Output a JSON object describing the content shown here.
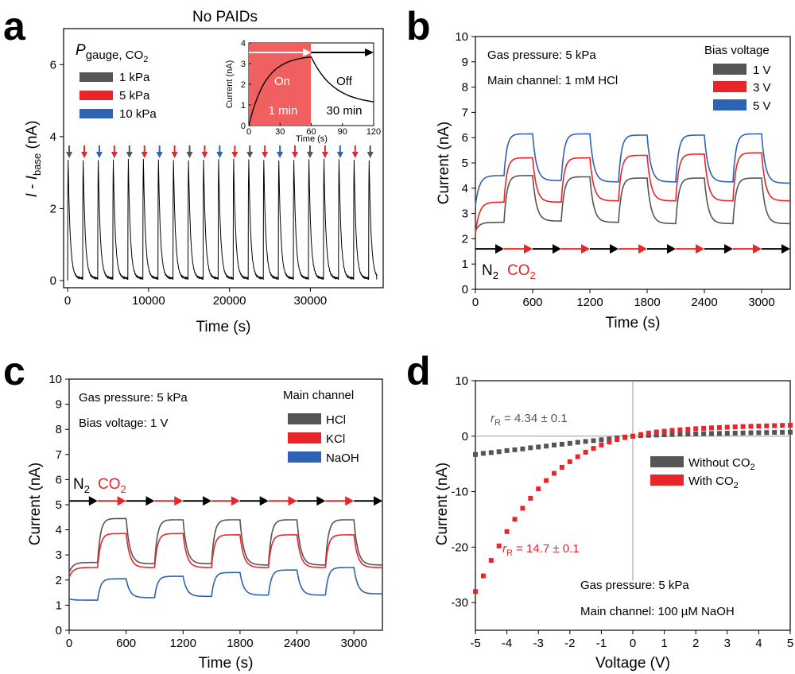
{
  "colors": {
    "gray": "#555555",
    "red": "#e8262a",
    "blue": "#2e62b4",
    "on_fill": "#f06060",
    "black": "#000000"
  },
  "panels": {
    "a": {
      "letter": "a",
      "title": "No PAIDs",
      "legend_title": "P",
      "legend_title_sub": "gauge, CO",
      "legend_title_sub2": "2",
      "legend": [
        "1 kPa",
        "5 kPa",
        "10 kPa"
      ],
      "inset": {
        "on_label": "On",
        "off_label": "Off",
        "on_time": "1 min",
        "off_time": "30 min"
      }
    },
    "b": {
      "letter": "b",
      "annotation1": "Gas pressure: 5 kPa",
      "annotation2": "Main channel: 1 mM HCl",
      "legend_title": "Bias voltage",
      "legend": [
        "1 V",
        "3 V",
        "5 V"
      ],
      "gas_n2": "N",
      "gas_n2_sub": "2",
      "gas_co2": "CO",
      "gas_co2_sub": "2"
    },
    "c": {
      "letter": "c",
      "annotation1": "Gas pressure: 5 kPa",
      "annotation2": "Bias voltage: 1 V",
      "legend_title": "Main channel",
      "legend": [
        "HCl",
        "KCl",
        "NaOH"
      ],
      "gas_n2": "N",
      "gas_n2_sub": "2",
      "gas_co2": "CO",
      "gas_co2_sub": "2"
    },
    "d": {
      "letter": "d",
      "annotation1": "Gas pressure: 5 kPa",
      "annotation2": "Main channel: 100 µM NaOH",
      "legend": [
        "Without CO",
        "With CO"
      ],
      "legend_sub": "2",
      "rr_symbol": "r",
      "rr_sub": "R",
      "rr_gray": " = 4.34 ± 0.1",
      "rr_red": " = 14.7 ± 0.1"
    }
  },
  "chart_data": [
    {
      "panel": "a",
      "type": "line",
      "title": "No PAIDs",
      "xlabel": "Time (s)",
      "ylabel_main": "I",
      "ylabel_sep": " - ",
      "ylabel_I": "I",
      "ylabel_sub": "base",
      "ylabel_unit": " (nA)",
      "xlim": [
        -500,
        39000
      ],
      "ylim": [
        -0.2,
        7
      ],
      "xticks": [
        0,
        10000,
        20000,
        30000
      ],
      "xtick_labels": [
        "0",
        "10000",
        "20000",
        "30000"
      ],
      "yticks": [
        0,
        2,
        4,
        6
      ],
      "ytick_labels": [
        "0",
        "2",
        "4",
        "6"
      ],
      "pulse_times": [
        0,
        1860,
        3720,
        5580,
        7440,
        9300,
        11160,
        13020,
        14880,
        16740,
        18600,
        20460,
        22320,
        24180,
        26040,
        27900,
        29760,
        31620,
        33480,
        35340,
        37200
      ],
      "pulse_peak": 3.3,
      "arrow_colors": [
        "gray",
        "red",
        "blue",
        "red",
        "gray",
        "red",
        "blue",
        "red",
        "gray",
        "red",
        "blue",
        "red",
        "gray",
        "red",
        "blue",
        "red",
        "gray",
        "red",
        "blue",
        "red",
        "gray"
      ],
      "inset": {
        "xlabel": "Time (s)",
        "ylabel": "Current (nA)",
        "xlim": [
          0,
          120
        ],
        "ylim": [
          0,
          4
        ],
        "xticks": [
          0,
          30,
          60,
          90,
          120
        ],
        "xtick_labels": [
          "0",
          "30",
          "60",
          "90",
          "120"
        ],
        "yticks": [
          0,
          1,
          2,
          3,
          4
        ],
        "ytick_labels": [
          "0",
          "1",
          "2",
          "3",
          "4"
        ],
        "on_period": [
          0,
          60
        ],
        "peak": 3.4,
        "end_value": 1.0
      }
    },
    {
      "panel": "b",
      "type": "line",
      "xlabel": "Time (s)",
      "ylabel": "Current (nA)",
      "xlim": [
        0,
        3300
      ],
      "ylim": [
        0,
        10
      ],
      "xticks": [
        0,
        600,
        1200,
        1800,
        2400,
        3000
      ],
      "xtick_labels": [
        "0",
        "600",
        "1200",
        "1800",
        "2400",
        "3000"
      ],
      "yticks": [
        0,
        1,
        2,
        3,
        4,
        5,
        6,
        7,
        8,
        9,
        10
      ],
      "ytick_labels": [
        "0",
        "1",
        "2",
        "3",
        "4",
        "5",
        "6",
        "7",
        "8",
        "9",
        "10"
      ],
      "period": 300,
      "series": [
        {
          "name": "1 V",
          "color": "gray",
          "start": 2.3,
          "n2_levels": [
            2.65,
            2.7,
            2.65,
            2.6,
            2.6,
            2.6
          ],
          "co2_levels": [
            4.5,
            4.45,
            4.4,
            4.4,
            4.4
          ]
        },
        {
          "name": "3 V",
          "color": "red",
          "start": 2.2,
          "n2_levels": [
            3.45,
            3.45,
            3.5,
            3.5,
            3.5,
            3.5
          ],
          "co2_levels": [
            5.2,
            5.2,
            5.3,
            5.35,
            5.4
          ]
        },
        {
          "name": "5 V",
          "color": "blue",
          "start": 3.3,
          "n2_levels": [
            4.5,
            4.3,
            4.25,
            4.25,
            4.25,
            4.2
          ],
          "co2_levels": [
            6.15,
            6.15,
            6.1,
            6.1,
            6.15
          ]
        }
      ],
      "arrow_y": 1.6
    },
    {
      "panel": "c",
      "type": "line",
      "xlabel": "Time (s)",
      "ylabel": "Current (nA)",
      "xlim": [
        0,
        3300
      ],
      "ylim": [
        0,
        10
      ],
      "xticks": [
        0,
        600,
        1200,
        1800,
        2400,
        3000
      ],
      "xtick_labels": [
        "0",
        "600",
        "1200",
        "1800",
        "2400",
        "3000"
      ],
      "yticks": [
        0,
        1,
        2,
        3,
        4,
        5,
        6,
        7,
        8,
        9,
        10
      ],
      "ytick_labels": [
        "0",
        "1",
        "2",
        "3",
        "4",
        "5",
        "6",
        "7",
        "8",
        "9",
        "10"
      ],
      "period": 300,
      "series": [
        {
          "name": "HCl",
          "color": "gray",
          "start": 2.3,
          "n2_levels": [
            2.7,
            2.65,
            2.65,
            2.6,
            2.6,
            2.6
          ],
          "co2_levels": [
            4.45,
            4.4,
            4.4,
            4.4,
            4.4
          ]
        },
        {
          "name": "KCl",
          "color": "red",
          "start": 2.1,
          "n2_levels": [
            2.5,
            2.5,
            2.5,
            2.5,
            2.5,
            2.5
          ],
          "co2_levels": [
            3.85,
            3.85,
            3.8,
            3.8,
            3.8
          ]
        },
        {
          "name": "NaOH",
          "color": "blue",
          "start": 1.25,
          "n2_levels": [
            1.2,
            1.3,
            1.35,
            1.4,
            1.4,
            1.45
          ],
          "co2_levels": [
            2.05,
            2.15,
            2.3,
            2.4,
            2.5
          ]
        }
      ],
      "arrow_y": 5.15
    },
    {
      "panel": "d",
      "type": "scatter",
      "xlabel": "Voltage (V)",
      "ylabel": "Current (nA)",
      "xlim": [
        -5,
        5
      ],
      "ylim": [
        -35,
        10
      ],
      "xticks": [
        -5,
        -4,
        -3,
        -2,
        -1,
        0,
        1,
        2,
        3,
        4,
        5
      ],
      "xtick_labels": [
        "-5",
        "-4",
        "-3",
        "-2",
        "-1",
        "0",
        "1",
        "2",
        "3",
        "4",
        "5"
      ],
      "yticks": [
        -30,
        -20,
        -10,
        0,
        10
      ],
      "ytick_labels": [
        "-30",
        "-20",
        "-10",
        "0",
        "10"
      ],
      "series": [
        {
          "name": "Without CO2",
          "color": "gray",
          "x": [
            -5,
            -4.75,
            -4.5,
            -4.25,
            -4,
            -3.75,
            -3.5,
            -3.25,
            -3,
            -2.75,
            -2.5,
            -2.25,
            -2,
            -1.75,
            -1.5,
            -1.25,
            -1,
            -0.75,
            -0.5,
            -0.25,
            0,
            0.25,
            0.5,
            0.75,
            1,
            1.25,
            1.5,
            1.75,
            2,
            2.25,
            2.5,
            2.75,
            3,
            3.25,
            3.5,
            3.75,
            4,
            4.25,
            4.5,
            4.75,
            5
          ],
          "y": [
            -3.3,
            -3.1,
            -2.95,
            -2.8,
            -2.6,
            -2.45,
            -2.3,
            -2.1,
            -1.95,
            -1.8,
            -1.6,
            -1.45,
            -1.3,
            -1.1,
            -0.95,
            -0.8,
            -0.65,
            -0.5,
            -0.3,
            -0.15,
            0,
            0.1,
            0.15,
            0.2,
            0.25,
            0.3,
            0.35,
            0.38,
            0.41,
            0.45,
            0.48,
            0.5,
            0.53,
            0.56,
            0.58,
            0.61,
            0.63,
            0.66,
            0.68,
            0.7,
            0.72
          ]
        },
        {
          "name": "With CO2",
          "color": "red",
          "x": [
            -5,
            -4.75,
            -4.5,
            -4.25,
            -4,
            -3.75,
            -3.5,
            -3.25,
            -3,
            -2.75,
            -2.5,
            -2.25,
            -2,
            -1.75,
            -1.5,
            -1.25,
            -1,
            -0.75,
            -0.5,
            -0.25,
            0,
            0.25,
            0.5,
            0.75,
            1,
            1.25,
            1.5,
            1.75,
            2,
            2.25,
            2.5,
            2.75,
            3,
            3.25,
            3.5,
            3.75,
            4,
            4.25,
            4.5,
            4.75,
            5
          ],
          "y": [
            -28,
            -25.2,
            -22.4,
            -19.8,
            -17.2,
            -15,
            -13,
            -11.2,
            -9.5,
            -8,
            -6.7,
            -5.6,
            -4.6,
            -3.7,
            -2.9,
            -2.2,
            -1.6,
            -1.05,
            -0.6,
            -0.25,
            0,
            0.3,
            0.55,
            0.75,
            0.9,
            1.05,
            1.15,
            1.25,
            1.35,
            1.42,
            1.5,
            1.56,
            1.62,
            1.68,
            1.73,
            1.78,
            1.82,
            1.86,
            1.9,
            1.94,
            1.98
          ]
        }
      ],
      "vline_x": 0,
      "hline_y": 0
    }
  ]
}
